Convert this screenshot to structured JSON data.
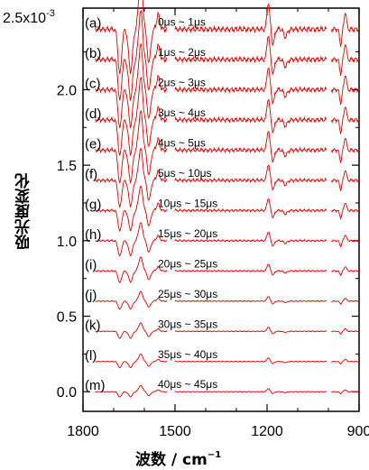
{
  "chart_data": {
    "type": "line",
    "ylabel": "吸光度変化",
    "xlabel": "波数 / cm",
    "xlabel_exp": "−1",
    "y_scale_label": "2.5x10",
    "y_scale_exp": "-3",
    "xlim": [
      1800,
      900
    ],
    "ylim": [
      -0.00013,
      0.00254
    ],
    "x_ticks": [
      1800,
      1500,
      1200,
      900
    ],
    "y_ticks": [
      {
        "value": 0.0,
        "label": "0.0"
      },
      {
        "value": 0.0005,
        "label": "0.5"
      },
      {
        "value": 0.001,
        "label": "1.0"
      },
      {
        "value": 0.0015,
        "label": "1.5"
      },
      {
        "value": 0.002,
        "label": "2.0"
      }
    ],
    "x_segments": [
      [
        1760,
        1525
      ],
      [
        1500,
        1005
      ],
      [
        990,
        900
      ]
    ],
    "series_color": "#e00000",
    "series": [
      {
        "name": "(a)",
        "time_range": "0μs ~ 1μs",
        "offset": 0.0024,
        "scale": 1.0
      },
      {
        "name": "(b)",
        "time_range": "1μs ~ 2μs",
        "offset": 0.0022,
        "scale": 0.92
      },
      {
        "name": "(c)",
        "time_range": "2μs ~ 3μs",
        "offset": 0.002,
        "scale": 0.86
      },
      {
        "name": "(d)",
        "time_range": "3μs ~ 4μs",
        "offset": 0.0018,
        "scale": 0.8
      },
      {
        "name": "(e)",
        "time_range": "4μs ~ 5μs",
        "offset": 0.0016,
        "scale": 0.74
      },
      {
        "name": "(f)",
        "time_range": "5μs ~ 10μs",
        "offset": 0.0014,
        "scale": 0.6
      },
      {
        "name": "(g)",
        "time_range": "10μs ~ 15μs",
        "offset": 0.0012,
        "scale": 0.46
      },
      {
        "name": "(h)",
        "time_range": "15μs ~ 20μs",
        "offset": 0.001,
        "scale": 0.34
      },
      {
        "name": "(i)",
        "time_range": "20μs ~ 25μs",
        "offset": 0.0008,
        "scale": 0.26
      },
      {
        "name": "(j)",
        "time_range": "25μs ~ 30μs",
        "offset": 0.0006,
        "scale": 0.18
      },
      {
        "name": "(k)",
        "time_range": "30μs ~ 35μs",
        "offset": 0.0004,
        "scale": 0.16
      },
      {
        "name": "(l)",
        "time_range": "35μs ~ 40μs",
        "offset": 0.0002,
        "scale": 0.14
      },
      {
        "name": "(m)",
        "time_range": "40μs ~ 45μs",
        "offset": 0.0,
        "scale": 0.12
      }
    ]
  }
}
